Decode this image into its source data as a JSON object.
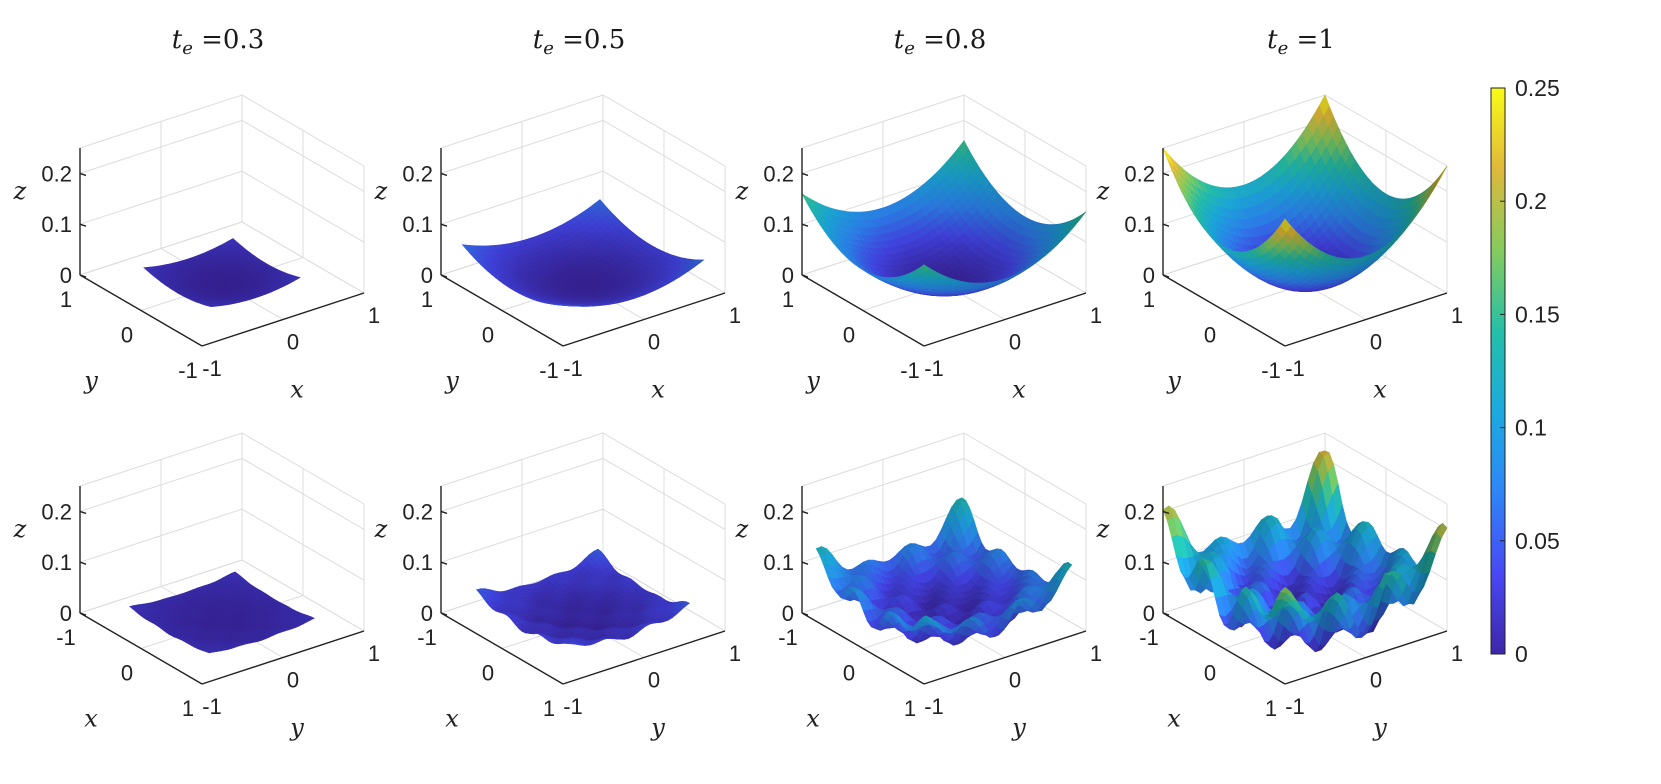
{
  "chart_data": {
    "type": "surface3d-grid",
    "description_rows": [
      "smooth paraboloid surfaces",
      "oscillatory surfaces"
    ],
    "panels": [
      {
        "row": 0,
        "col": 0,
        "title": "t_e =0.3",
        "te": 0.3,
        "kind": "smooth",
        "zlabel": "z",
        "front_left_label": "y",
        "front_right_label": "x",
        "left_ticks": [
          "1",
          "0",
          "-1"
        ],
        "right_ticks": [
          "-1",
          "0",
          "1"
        ]
      },
      {
        "row": 0,
        "col": 1,
        "title": "t_e =0.5",
        "te": 0.5,
        "kind": "smooth",
        "zlabel": "z",
        "front_left_label": "y",
        "front_right_label": "x",
        "left_ticks": [
          "1",
          "0",
          "-1"
        ],
        "right_ticks": [
          "-1",
          "0",
          "1"
        ]
      },
      {
        "row": 0,
        "col": 2,
        "title": "t_e =0.8",
        "te": 0.8,
        "kind": "smooth",
        "zlabel": "z",
        "front_left_label": "y",
        "front_right_label": "x",
        "left_ticks": [
          "1",
          "0",
          "-1"
        ],
        "right_ticks": [
          "-1",
          "0",
          "1"
        ]
      },
      {
        "row": 0,
        "col": 3,
        "title": "t_e =1",
        "te": 1.0,
        "kind": "smooth",
        "zlabel": "z",
        "front_left_label": "y",
        "front_right_label": "x",
        "left_ticks": [
          "1",
          "0",
          "-1"
        ],
        "right_ticks": [
          "-1",
          "0",
          "1"
        ]
      },
      {
        "row": 1,
        "col": 0,
        "title": "",
        "te": 0.3,
        "kind": "wavy",
        "zlabel": "z",
        "front_left_label": "x",
        "front_right_label": "y",
        "left_ticks": [
          "-1",
          "0",
          "1"
        ],
        "right_ticks": [
          "-1",
          "0",
          "1"
        ]
      },
      {
        "row": 1,
        "col": 1,
        "title": "",
        "te": 0.5,
        "kind": "wavy",
        "zlabel": "z",
        "front_left_label": "x",
        "front_right_label": "y",
        "left_ticks": [
          "-1",
          "0",
          "1"
        ],
        "right_ticks": [
          "-1",
          "0",
          "1"
        ]
      },
      {
        "row": 1,
        "col": 2,
        "title": "",
        "te": 0.8,
        "kind": "wavy",
        "zlabel": "z",
        "front_left_label": "x",
        "front_right_label": "y",
        "left_ticks": [
          "-1",
          "0",
          "1"
        ],
        "right_ticks": [
          "-1",
          "0",
          "1"
        ]
      },
      {
        "row": 1,
        "col": 3,
        "title": "",
        "te": 1.0,
        "kind": "wavy",
        "zlabel": "z",
        "front_left_label": "x",
        "front_right_label": "y",
        "left_ticks": [
          "-1",
          "0",
          "1"
        ],
        "right_ticks": [
          "-1",
          "0",
          "1"
        ]
      }
    ],
    "zlim": [
      0,
      0.25
    ],
    "zticks": [
      0,
      0.1,
      0.2
    ],
    "zticklabels": [
      "0",
      "0.1",
      "0.2"
    ],
    "xlim": [
      -1,
      1
    ],
    "ylim": [
      -1,
      1
    ],
    "grid": true,
    "colorbar": {
      "placement": "right",
      "range": [
        0,
        0.25
      ],
      "ticks": [
        0,
        0.05,
        0.1,
        0.15,
        0.2,
        0.25
      ],
      "ticklabels": [
        "0",
        "0.05",
        "0.1",
        "0.15",
        "0.2",
        "0.25"
      ],
      "colormap": "parula",
      "colors": [
        "#3e26a8",
        "#4748f4",
        "#2e87f7",
        "#1caadf",
        "#24bfa8",
        "#82cb5f",
        "#e0b93a",
        "#f9fb15"
      ]
    }
  }
}
